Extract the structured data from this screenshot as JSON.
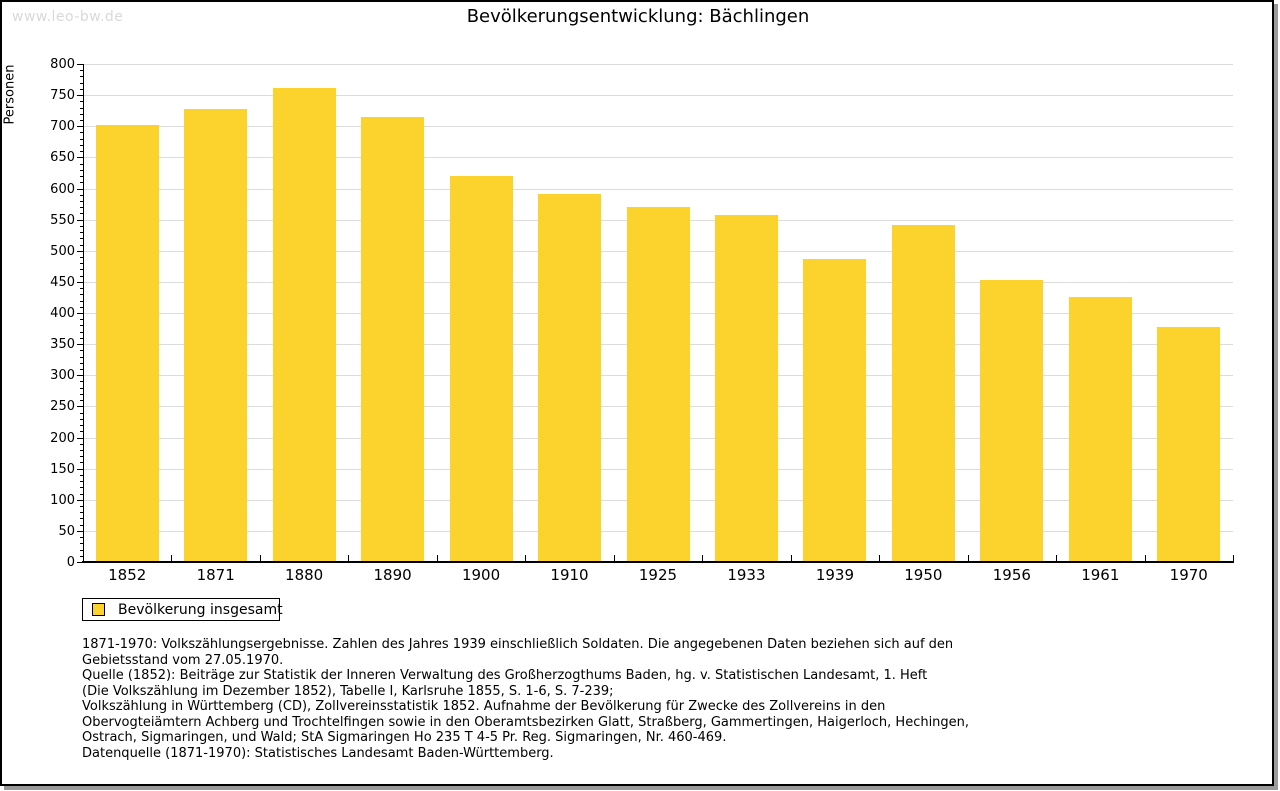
{
  "watermark": "www.leo-bw.de",
  "header": {
    "title": "Bevölkerungsentwicklung: Bächlingen"
  },
  "chart_data": {
    "type": "bar",
    "title": "Bevölkerungsentwicklung: Bächlingen",
    "categories": [
      "1852",
      "1871",
      "1880",
      "1890",
      "1900",
      "1910",
      "1925",
      "1933",
      "1939",
      "1950",
      "1956",
      "1961",
      "1970"
    ],
    "values": [
      702,
      727,
      762,
      715,
      620,
      591,
      570,
      558,
      486,
      542,
      453,
      425,
      377
    ],
    "series_name": "Bevölkerung insgesamt",
    "xlabel": "",
    "ylabel": "Personen",
    "ylim": [
      0,
      800
    ],
    "ytick_step": 50,
    "yminor_step": 10,
    "grid": "horizontal",
    "legend_position": "bottom-left",
    "bar_color": "#fcd32d",
    "grid_color": "#dcdcdc"
  },
  "legend": {
    "label": "Bevölkerung insgesamt"
  },
  "footnotes": {
    "lines": [
      "1871-1970: Volkszählungsergebnisse. Zahlen des Jahres 1939 einschließlich Soldaten. Die angegebenen Daten beziehen sich auf den",
      "Gebietsstand vom 27.05.1970.",
      "Quelle (1852): Beiträge zur Statistik der Inneren Verwaltung des Großherzogthums Baden, hg. v. Statistischen Landesamt, 1. Heft",
      "(Die Volkszählung im Dezember 1852), Tabelle I, Karlsruhe 1855, S. 1-6, S. 7-239;",
      "Volkszählung in Württemberg (CD), Zollvereinsstatistik 1852. Aufnahme der Bevölkerung für Zwecke des Zollvereins in den",
      "Obervogteiämtern Achberg und Trochtelfingen sowie in den Oberamtsbezirken Glatt, Straßberg, Gammertingen, Haigerloch, Hechingen,",
      "Ostrach, Sigmaringen, und Wald; StA Sigmaringen Ho 235 T 4-5 Pr. Reg. Sigmaringen, Nr. 460-469."
    ],
    "datasource": "Datenquelle (1871-1970): Statistisches Landesamt Baden-Württemberg."
  }
}
